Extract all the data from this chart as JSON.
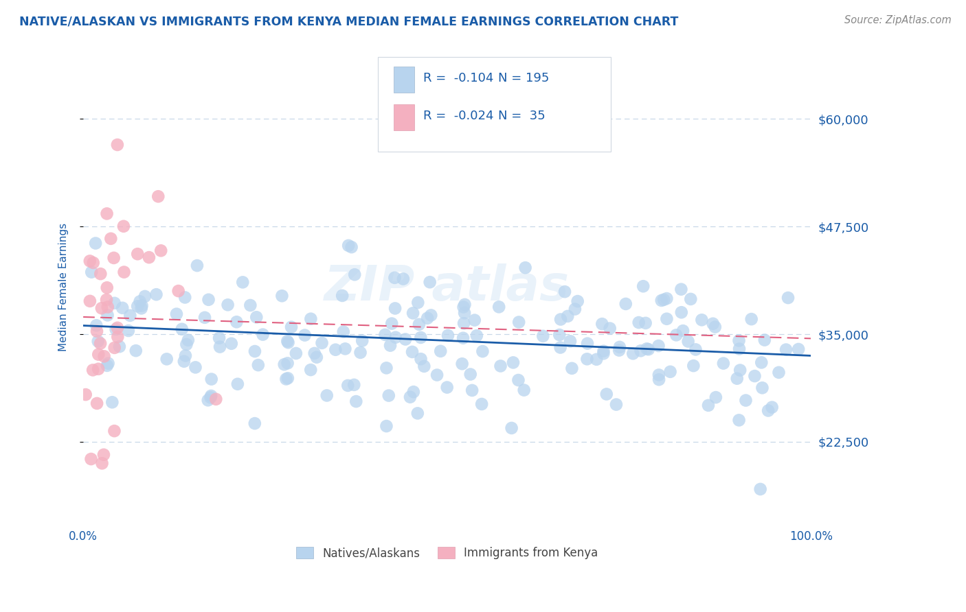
{
  "title": "NATIVE/ALASKAN VS IMMIGRANTS FROM KENYA MEDIAN FEMALE EARNINGS CORRELATION CHART",
  "source": "Source: ZipAtlas.com",
  "ylabel": "Median Female Earnings",
  "xlim": [
    0,
    1
  ],
  "ylim": [
    13000,
    68000
  ],
  "yticks": [
    22500,
    35000,
    47500,
    60000
  ],
  "ytick_labels": [
    "$22,500",
    "$35,000",
    "$47,500",
    "$60,000"
  ],
  "xtick_labels": [
    "0.0%",
    "100.0%"
  ],
  "native_color": "#b8d4ee",
  "kenya_color": "#f4b0c0",
  "native_line_color": "#1a5ca8",
  "kenya_line_color": "#e06080",
  "background_color": "#ffffff",
  "grid_color": "#c8d8e8",
  "title_color": "#1a5ca8",
  "axis_label_color": "#1a5ca8",
  "ytick_color": "#1a5ca8",
  "native_trend_x": [
    0.0,
    1.0
  ],
  "native_trend_y": [
    36000,
    32500
  ],
  "kenya_trend_x": [
    0.0,
    1.0
  ],
  "kenya_trend_y": [
    37000,
    34500
  ],
  "legend_R1": "R =  -0.104",
  "legend_N1": "N = 195",
  "legend_R2": "R =  -0.024",
  "legend_N2": "N =  35",
  "legend_label1": "Natives/Alaskans",
  "legend_label2": "Immigrants from Kenya"
}
